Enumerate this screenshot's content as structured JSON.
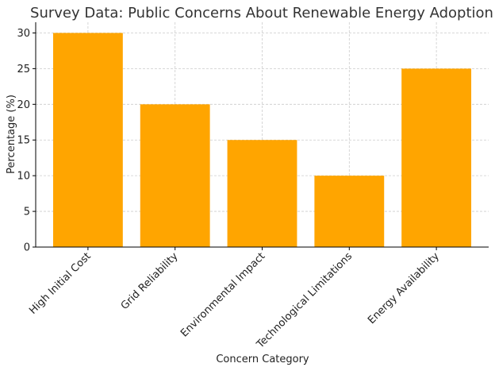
{
  "chart_data": {
    "type": "bar",
    "title": "Survey Data: Public Concerns About Renewable Energy Adoption",
    "xlabel": "Concern Category",
    "ylabel": "Percentage (%)",
    "categories": [
      "High Initial Cost",
      "Grid Reliability",
      "Environmental Impact",
      "Technological Limitations",
      "Energy Availability"
    ],
    "values": [
      30,
      20,
      15,
      10,
      25
    ],
    "ylim": [
      0,
      31.5
    ],
    "yticks": [
      0,
      5,
      10,
      15,
      20,
      25,
      30
    ],
    "grid": true,
    "bar_color": "#FFA500",
    "grid_color": "#cccccc"
  }
}
